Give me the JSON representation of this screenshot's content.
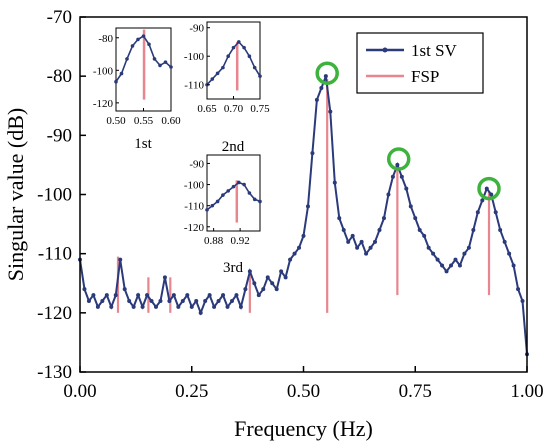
{
  "chart_data": {
    "type": "line",
    "xlabel": "Frequency (Hz)",
    "ylabel": "Singular value (dB)",
    "xlim": [
      0,
      1
    ],
    "ylim": [
      -130,
      -70
    ],
    "xticks": [
      "0.00",
      "0.25",
      "0.50",
      "0.75",
      "1.00"
    ],
    "yticks": [
      "-70",
      "-80",
      "-90",
      "-100",
      "-110",
      "-120",
      "-130"
    ],
    "grid": false,
    "legend": {
      "placement": "top-right",
      "entries": [
        "1st SV",
        "FSP"
      ]
    },
    "colors": {
      "sv": "#2b3a7a",
      "fsp": "#e8858e",
      "circle": "#3db33d"
    },
    "series": [
      {
        "name": "1st SV",
        "x": [
          0.0,
          0.01,
          0.02,
          0.03,
          0.04,
          0.05,
          0.06,
          0.07,
          0.08,
          0.09,
          0.1,
          0.11,
          0.12,
          0.13,
          0.14,
          0.15,
          0.16,
          0.17,
          0.18,
          0.19,
          0.2,
          0.21,
          0.22,
          0.23,
          0.24,
          0.25,
          0.26,
          0.27,
          0.28,
          0.29,
          0.3,
          0.31,
          0.32,
          0.33,
          0.34,
          0.35,
          0.36,
          0.37,
          0.38,
          0.39,
          0.4,
          0.41,
          0.42,
          0.43,
          0.44,
          0.45,
          0.46,
          0.47,
          0.48,
          0.49,
          0.5,
          0.51,
          0.52,
          0.53,
          0.54,
          0.55,
          0.56,
          0.57,
          0.58,
          0.59,
          0.6,
          0.61,
          0.62,
          0.63,
          0.64,
          0.65,
          0.66,
          0.67,
          0.68,
          0.69,
          0.7,
          0.71,
          0.72,
          0.73,
          0.74,
          0.75,
          0.76,
          0.77,
          0.78,
          0.79,
          0.8,
          0.81,
          0.82,
          0.83,
          0.84,
          0.85,
          0.86,
          0.87,
          0.88,
          0.89,
          0.9,
          0.91,
          0.92,
          0.93,
          0.94,
          0.95,
          0.96,
          0.97,
          0.98,
          0.99,
          1.0
        ],
        "y": [
          -111,
          -116,
          -118,
          -117,
          -119,
          -118,
          -117,
          -119,
          -117,
          -111,
          -116,
          -118,
          -119,
          -117,
          -119,
          -117,
          -118,
          -119,
          -118,
          -114,
          -118,
          -117,
          -119,
          -118,
          -117,
          -119,
          -118,
          -120,
          -118,
          -117,
          -119,
          -118,
          -117,
          -119,
          -118,
          -117,
          -119,
          -116,
          -113,
          -115,
          -117,
          -116,
          -114,
          -115,
          -116,
          -113,
          -114,
          -111,
          -110,
          -109,
          -107,
          -102,
          -93,
          -84,
          -82,
          -80,
          -86,
          -98,
          -104,
          -106,
          -108,
          -107,
          -109,
          -108,
          -110,
          -109,
          -108,
          -106,
          -104,
          -100,
          -97,
          -95,
          -97,
          -99,
          -102,
          -104,
          -106,
          -107,
          -109,
          -110,
          -111,
          -112,
          -113,
          -112,
          -111,
          -112,
          -110,
          -109,
          -106,
          -103,
          -101,
          -99,
          -100,
          -103,
          -106,
          -108,
          -110,
          -112,
          -116,
          -118,
          -127
        ]
      }
    ],
    "fsp_lines": [
      {
        "x": 0.085,
        "top": -110.5,
        "bottom": -120
      },
      {
        "x": 0.153,
        "top": -114,
        "bottom": -120
      },
      {
        "x": 0.202,
        "top": -114,
        "bottom": -120
      },
      {
        "x": 0.38,
        "top": -113,
        "bottom": -120
      },
      {
        "x": 0.553,
        "top": -80.5,
        "bottom": -120
      },
      {
        "x": 0.71,
        "top": -95.5,
        "bottom": -117
      },
      {
        "x": 0.915,
        "top": -99.5,
        "bottom": -117
      }
    ],
    "peak_circles": [
      {
        "x": 0.553,
        "y": -79.5
      },
      {
        "x": 0.713,
        "y": -94
      },
      {
        "x": 0.915,
        "y": -99
      }
    ],
    "insets": [
      {
        "label": "1st",
        "xlim": [
          0.5,
          0.6
        ],
        "ylim": [
          -125,
          -74
        ],
        "xticks": [
          0.5,
          0.55,
          0.6
        ],
        "xtick_labels": [
          "0.50",
          "0.55",
          "0.60"
        ],
        "yticks": [
          -80,
          -100,
          -120
        ],
        "ytick_labels": [
          "-80",
          "-100",
          "-120"
        ],
        "x": [
          0.5,
          0.51,
          0.52,
          0.53,
          0.54,
          0.55,
          0.56,
          0.57,
          0.58,
          0.59,
          0.6
        ],
        "y": [
          -107,
          -102,
          -93,
          -85,
          -81,
          -79,
          -84,
          -93,
          -97,
          -95,
          -98
        ],
        "fsp_x": 0.551,
        "fsp_top": -75,
        "fsp_bottom": -118
      },
      {
        "label": "2nd",
        "xlim": [
          0.65,
          0.75
        ],
        "ylim": [
          -115,
          -88
        ],
        "xticks": [
          0.65,
          0.7,
          0.75
        ],
        "xtick_labels": [
          "0.65",
          "0.70",
          "0.75"
        ],
        "yticks": [
          -90,
          -100,
          -110
        ],
        "ytick_labels": [
          "-90",
          "-100",
          "-110"
        ],
        "x": [
          0.65,
          0.66,
          0.67,
          0.68,
          0.69,
          0.7,
          0.71,
          0.72,
          0.73,
          0.74,
          0.75
        ],
        "y": [
          -110,
          -108,
          -106,
          -104,
          -100,
          -97,
          -95,
          -97,
          -100,
          -104,
          -107
        ],
        "fsp_x": 0.707,
        "fsp_top": -95,
        "fsp_bottom": -112
      },
      {
        "label": "3rd",
        "xlim": [
          0.87,
          0.95
        ],
        "ylim": [
          -122,
          -86
        ],
        "xticks": [
          0.88,
          0.92
        ],
        "xtick_labels": [
          "0.88",
          "0.92"
        ],
        "yticks": [
          -90,
          -100,
          -110,
          -120
        ],
        "ytick_labels": [
          "-90",
          "-100",
          "-110",
          "-120"
        ],
        "x": [
          0.87,
          0.878,
          0.886,
          0.894,
          0.902,
          0.91,
          0.918,
          0.926,
          0.934,
          0.942,
          0.95
        ],
        "y": [
          -112,
          -110,
          -108,
          -105,
          -103,
          -101,
          -99,
          -100,
          -104,
          -107,
          -108
        ],
        "fsp_x": 0.915,
        "fsp_top": -98,
        "fsp_bottom": -118
      }
    ]
  }
}
